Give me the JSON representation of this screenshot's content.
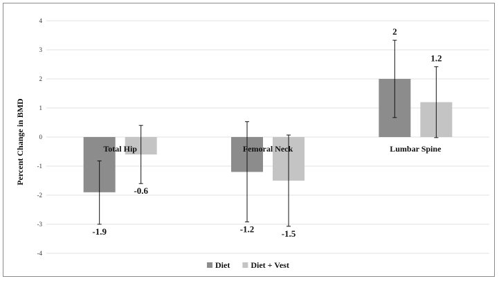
{
  "chart_data": {
    "type": "bar",
    "title": "",
    "xlabel": "",
    "ylabel": "Percent Change in BMD",
    "categories": [
      "Total Hip",
      "Femoral Neck",
      "Lumbar Spine"
    ],
    "series": [
      {
        "name": "Diet",
        "color": "#8c8c8c",
        "values": [
          -1.9,
          -1.2,
          2
        ],
        "labels": [
          "-1.9",
          "-1.2",
          "2"
        ],
        "error_low": [
          -3.0,
          -2.92,
          0.67
        ],
        "error_high": [
          -0.82,
          0.53,
          3.33
        ]
      },
      {
        "name": "Diet + Vest",
        "color": "#c4c4c4",
        "values": [
          -0.6,
          -1.5,
          1.2
        ],
        "labels": [
          "-0.6",
          "-1.5",
          "1.2"
        ],
        "error_low": [
          -1.6,
          -3.07,
          -0.02
        ],
        "error_high": [
          0.4,
          0.07,
          2.42
        ]
      }
    ],
    "ylim": [
      -4,
      4
    ],
    "yticks": [
      -4,
      -3,
      -2,
      -1,
      0,
      1,
      2,
      3,
      4
    ],
    "grid": true,
    "legend": "bottom"
  }
}
